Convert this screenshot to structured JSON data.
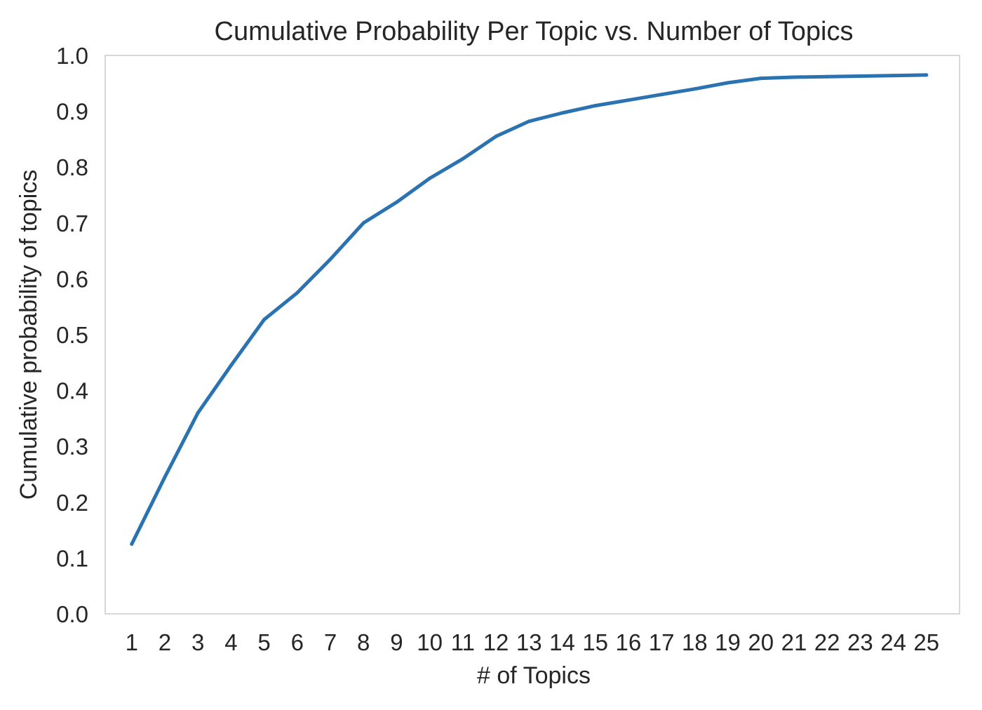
{
  "chart_data": {
    "type": "line",
    "title": "Cumulative Probability Per Topic vs. Number of Topics",
    "xlabel": "# of Topics",
    "ylabel": "Cumulative probability of topics",
    "x": [
      1,
      2,
      3,
      4,
      5,
      6,
      7,
      8,
      9,
      10,
      11,
      12,
      13,
      14,
      15,
      16,
      17,
      18,
      19,
      20,
      21,
      22,
      23,
      24,
      25
    ],
    "x_tick_labels": [
      "1",
      "2",
      "3",
      "4",
      "5",
      "6",
      "7",
      "8",
      "9",
      "10",
      "11",
      "12",
      "13",
      "14",
      "15",
      "16",
      "17",
      "18",
      "19",
      "20",
      "21",
      "22",
      "23",
      "24",
      "25"
    ],
    "y_ticks": [
      0.0,
      0.1,
      0.2,
      0.3,
      0.4,
      0.5,
      0.6,
      0.7,
      0.8,
      0.9,
      1.0
    ],
    "y_tick_labels": [
      "0.0",
      "0.1",
      "0.2",
      "0.3",
      "0.4",
      "0.5",
      "0.6",
      "0.7",
      "0.8",
      "0.9",
      "1.0"
    ],
    "series": [
      {
        "values": [
          0.125,
          0.245,
          0.36,
          0.445,
          0.527,
          0.575,
          0.635,
          0.7,
          0.737,
          0.78,
          0.815,
          0.855,
          0.882,
          0.897,
          0.91,
          0.92,
          0.93,
          0.94,
          0.951,
          0.959,
          0.961,
          0.962,
          0.963,
          0.964,
          0.965
        ],
        "color": "#2a72b0"
      }
    ],
    "xlim": [
      0.2,
      26
    ],
    "ylim": [
      0.0,
      1.0
    ],
    "grid": false,
    "legend": "none",
    "frame_color": "#cccccc"
  }
}
